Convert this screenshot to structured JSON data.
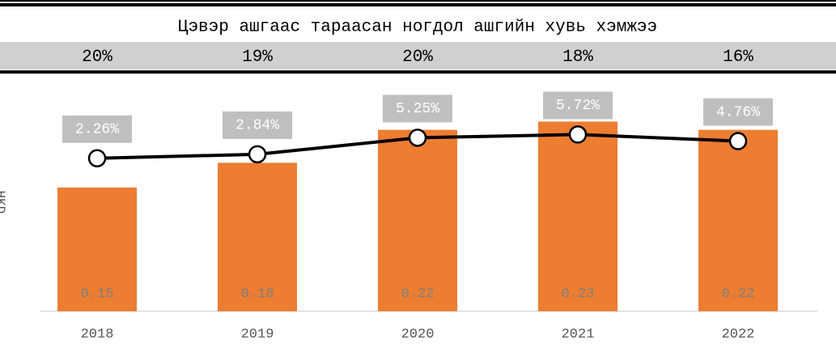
{
  "chart_data": {
    "type": "bar-line",
    "title": "Цэвэр ашгаас тараасан ногдол ашгийн хувь хэмжээ",
    "header_row": [
      "20%",
      "19%",
      "20%",
      "18%",
      "16%"
    ],
    "y_label": "HKD",
    "categories": [
      "2018",
      "2019",
      "2020",
      "2021",
      "2022"
    ],
    "series": [
      {
        "name": "bars",
        "type": "bar",
        "color": "#ed7d31",
        "values": [
          0.15,
          0.18,
          0.22,
          0.23,
          0.22
        ]
      },
      {
        "name": "line",
        "type": "line",
        "axis": "y2",
        "color": "#000000",
        "values": [
          2.26,
          2.84,
          5.25,
          5.72,
          4.76
        ],
        "value_labels": [
          "2.26%",
          "2.84%",
          "5.25%",
          "5.72%",
          "4.76%"
        ]
      }
    ],
    "ylim": [
      0,
      0.25
    ],
    "y2lim": [
      -20,
      10
    ]
  }
}
